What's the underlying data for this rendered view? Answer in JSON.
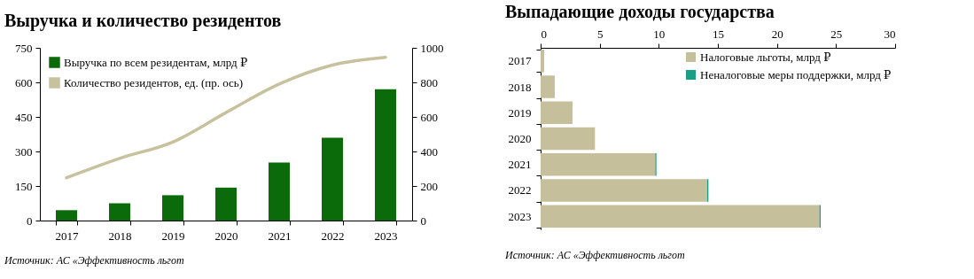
{
  "chart_data": [
    {
      "type": "bar",
      "title": "Выручка и количество резидентов",
      "categories": [
        "2017",
        "2018",
        "2019",
        "2020",
        "2021",
        "2022",
        "2023"
      ],
      "series": [
        {
          "name": "Выручка по всем резидентам, млрд ₽",
          "color": "#0b6b0b",
          "values": [
            45,
            75,
            110,
            143,
            252,
            360,
            570
          ]
        },
        {
          "name": "Количество резидентов, ед. (пр. ось)",
          "type": "line",
          "axis": "y2",
          "color": "#c8c19e",
          "values": [
            248,
            360,
            455,
            625,
            790,
            900,
            945
          ]
        }
      ],
      "ylim": [
        0,
        750
      ],
      "yticks": [
        0,
        150,
        300,
        450,
        600,
        750
      ],
      "y2lim": [
        0,
        1000
      ],
      "y2ticks": [
        0,
        200,
        400,
        600,
        800,
        1000
      ],
      "legend": "top left",
      "grid": false,
      "annotations": [
        "Источник: АС «Эффективность льгот"
      ]
    },
    {
      "type": "bar",
      "title": "Выпадающие доходы государства",
      "orientation": "horizontal",
      "stacked": true,
      "categories": [
        "2017",
        "2018",
        "2019",
        "2020",
        "2021",
        "2022",
        "2023"
      ],
      "series": [
        {
          "name": "Налоговые льготы, млрд ₽",
          "color": "#c5bf9b",
          "values": [
            0.3,
            1.2,
            2.7,
            4.6,
            9.7,
            14.1,
            23.6
          ]
        },
        {
          "name": "Неналоговые меры поддержки, млрд ₽",
          "color": "#1a9e86",
          "values": [
            0,
            0,
            0,
            0,
            0.1,
            0.1,
            0.1
          ]
        }
      ],
      "xlim": [
        0,
        30
      ],
      "xticks": [
        0,
        5,
        10,
        15,
        20,
        25,
        30
      ],
      "legend": "top right",
      "grid": false,
      "annotations": [
        "Источник: АС «Эффективность льгот"
      ]
    }
  ]
}
